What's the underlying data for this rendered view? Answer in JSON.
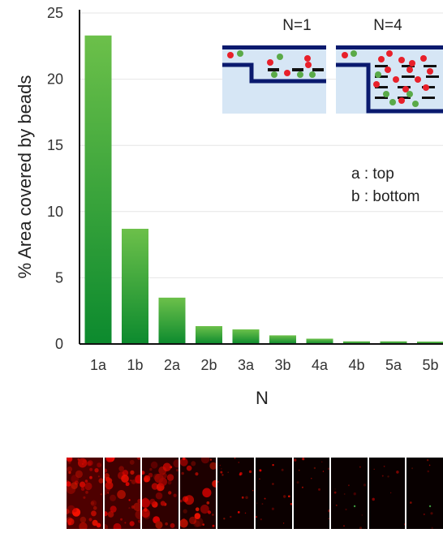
{
  "chart_data": {
    "type": "bar",
    "categories": [
      "1a",
      "1b",
      "2a",
      "2b",
      "3a",
      "3b",
      "4a",
      "4b",
      "5a",
      "5b"
    ],
    "values": [
      23.3,
      8.7,
      3.5,
      1.35,
      1.1,
      0.65,
      0.4,
      0.2,
      0.2,
      0.18
    ],
    "xlabel": "N",
    "ylabel": "% Area covered by beads",
    "ylim": [
      0,
      25
    ],
    "yticks": [
      0,
      5,
      10,
      15,
      20,
      25
    ],
    "grid": true,
    "bar_gradient": [
      "#0c8a2e",
      "#6cc04a"
    ],
    "annotations": [
      "a : top",
      "b : bottom"
    ],
    "insets": [
      {
        "label": "N=1",
        "layers": 1
      },
      {
        "label": "N=4",
        "layers": 4
      }
    ],
    "colors": {
      "channel_wall": "#0a1a6e",
      "channel_fill": "#d6e6f5",
      "red_bead": "#e8202a",
      "green_bead": "#5aaa48"
    }
  },
  "micrographs": {
    "count": 10,
    "intensity": [
      1.0,
      0.9,
      0.75,
      0.55,
      0.3,
      0.22,
      0.18,
      0.14,
      0.06,
      0.05
    ]
  }
}
